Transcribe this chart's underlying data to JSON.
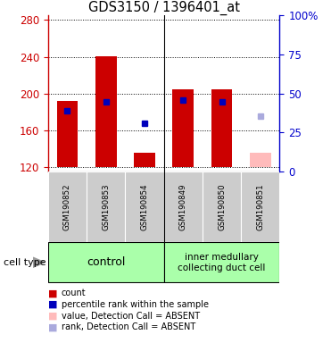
{
  "title": "GDS3150 / 1396401_at",
  "samples": [
    "GSM190852",
    "GSM190853",
    "GSM190854",
    "GSM190849",
    "GSM190850",
    "GSM190851"
  ],
  "ylim_left": [
    115,
    285
  ],
  "ylim_right": [
    0,
    100
  ],
  "yticks_left": [
    120,
    160,
    200,
    240,
    280
  ],
  "yticks_right": [
    0,
    25,
    50,
    75,
    100
  ],
  "red_bars": [
    192,
    241,
    135,
    205,
    205,
    null
  ],
  "pink_bars": [
    null,
    null,
    null,
    null,
    null,
    135
  ],
  "blue_squares": [
    181,
    191,
    168,
    193,
    191,
    null
  ],
  "light_blue_squares": [
    null,
    null,
    null,
    null,
    null,
    175
  ],
  "bar_bottom": 120,
  "bar_width": 0.55,
  "group_divider": 2.5,
  "control_label": "control",
  "imcd_label": "inner medullary\ncollecting duct cell",
  "cell_type_label": "cell type",
  "colors": {
    "red_bar": "#cc0000",
    "pink_bar": "#ffbbbb",
    "blue_square": "#0000bb",
    "light_blue_square": "#aaaadd",
    "left_axis": "#cc0000",
    "right_axis": "#0000cc",
    "grid": "#000000",
    "cell_type_bg": "#aaffaa",
    "sample_bg": "#cccccc",
    "plot_bg": "white",
    "border": "black"
  },
  "legend_labels": [
    "count",
    "percentile rank within the sample",
    "value, Detection Call = ABSENT",
    "rank, Detection Call = ABSENT"
  ],
  "legend_colors": [
    "#cc0000",
    "#0000bb",
    "#ffbbbb",
    "#aaaadd"
  ]
}
